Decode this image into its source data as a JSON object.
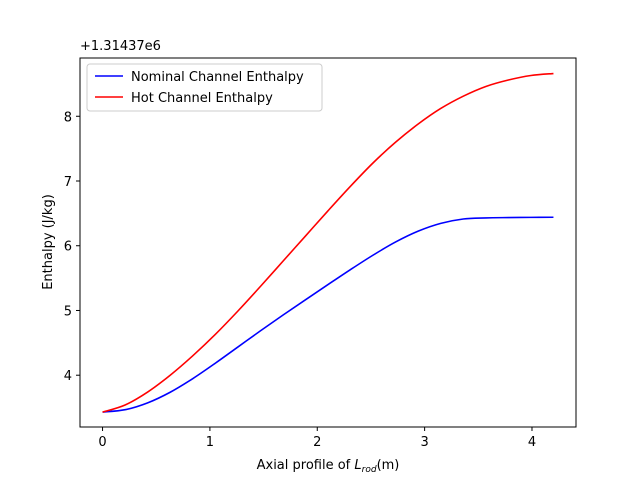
{
  "chart_data": {
    "type": "line",
    "title": "",
    "xlabel_main": "Axial profile of ",
    "xlabel_math_base": "L",
    "xlabel_math_sub": "rod",
    "xlabel_unit": "(m)",
    "ylabel": "Enthalpy (J/kg)",
    "y_offset_label": "+1.31437e6",
    "xlim": [
      -0.21,
      4.41
    ],
    "ylim": [
      3.2,
      8.9
    ],
    "xticks": [
      0,
      1,
      2,
      3,
      4
    ],
    "yticks": [
      4,
      5,
      6,
      7,
      8
    ],
    "grid": false,
    "legend_position": "top-left",
    "series": [
      {
        "name": "Nominal Channel Enthalpy",
        "color": "#0000ff",
        "x": [
          0,
          0.21,
          0.42,
          0.63,
          0.84,
          1.05,
          1.26,
          1.47,
          1.68,
          1.89,
          2.1,
          2.31,
          2.52,
          2.73,
          2.94,
          3.15,
          3.36,
          3.57,
          3.78,
          3.99,
          4.2
        ],
        "y": [
          3.43,
          3.467,
          3.573,
          3.737,
          3.947,
          4.185,
          4.435,
          4.685,
          4.928,
          5.165,
          5.4,
          5.632,
          5.855,
          6.058,
          6.225,
          6.345,
          6.413,
          6.43,
          6.435,
          6.438,
          6.44
        ]
      },
      {
        "name": "Hot Channel Enthalpy",
        "color": "#ff0000",
        "x": [
          0,
          0.21,
          0.42,
          0.63,
          0.84,
          1.05,
          1.26,
          1.47,
          1.68,
          1.89,
          2.1,
          2.31,
          2.52,
          2.73,
          2.94,
          3.15,
          3.36,
          3.57,
          3.78,
          3.99,
          4.2
        ],
        "y": [
          3.43,
          3.54,
          3.74,
          4.0,
          4.3,
          4.63,
          4.99,
          5.37,
          5.76,
          6.15,
          6.54,
          6.92,
          7.28,
          7.6,
          7.88,
          8.12,
          8.31,
          8.46,
          8.56,
          8.63,
          8.66
        ]
      }
    ]
  }
}
